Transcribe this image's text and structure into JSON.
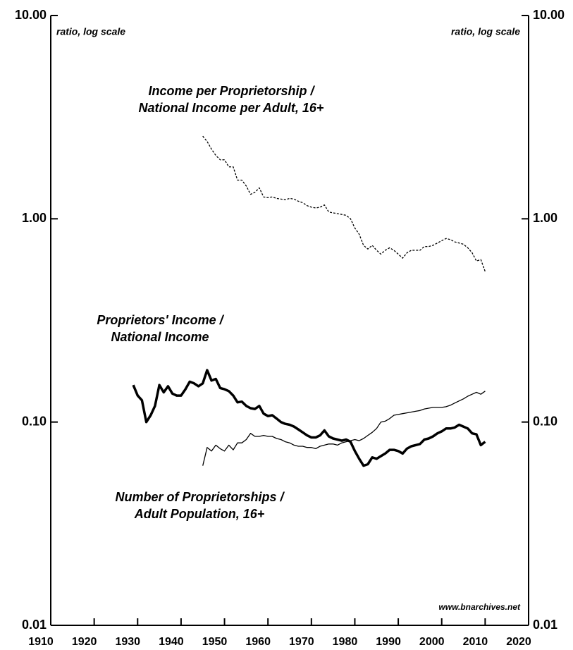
{
  "chart_data": {
    "type": "line",
    "log_scale": true,
    "axis_label_left": "ratio, log scale",
    "axis_label_right": "ratio, log scale",
    "source": "www.bnarchives.net",
    "annotations": [
      {
        "lines": [
          "Income per Proprietorship /",
          "National Income per Adult, 16+"
        ]
      },
      {
        "lines": [
          "Proprietors' Income /",
          "National Income"
        ]
      },
      {
        "lines": [
          "Number of Proprietorships /",
          "Adult Population, 16+"
        ]
      }
    ],
    "x": [
      1929,
      1930,
      1931,
      1932,
      1933,
      1934,
      1935,
      1936,
      1937,
      1938,
      1939,
      1940,
      1941,
      1942,
      1943,
      1944,
      1945,
      1946,
      1947,
      1948,
      1949,
      1950,
      1951,
      1952,
      1953,
      1954,
      1955,
      1956,
      1957,
      1958,
      1959,
      1960,
      1961,
      1962,
      1963,
      1964,
      1965,
      1966,
      1967,
      1968,
      1969,
      1970,
      1971,
      1972,
      1973,
      1974,
      1975,
      1976,
      1977,
      1978,
      1979,
      1980,
      1981,
      1982,
      1983,
      1984,
      1985,
      1986,
      1987,
      1988,
      1989,
      1990,
      1991,
      1992,
      1993,
      1994,
      1995,
      1996,
      1997,
      1998,
      1999,
      2000,
      2001,
      2002,
      2003,
      2004,
      2005,
      2006,
      2007,
      2008,
      2009,
      2010
    ],
    "series": [
      {
        "color": "#000000",
        "style": "dotted",
        "values": [
          null,
          null,
          null,
          null,
          null,
          null,
          null,
          null,
          null,
          null,
          null,
          null,
          null,
          null,
          null,
          null,
          2.55,
          2.4,
          2.2,
          2.05,
          1.95,
          1.95,
          1.8,
          1.8,
          1.55,
          1.55,
          1.45,
          1.32,
          1.35,
          1.42,
          1.28,
          1.27,
          1.28,
          1.26,
          1.25,
          1.24,
          1.26,
          1.25,
          1.22,
          1.2,
          1.16,
          1.14,
          1.13,
          1.14,
          1.17,
          1.08,
          1.07,
          1.06,
          1.05,
          1.04,
          1.0,
          0.9,
          0.84,
          0.74,
          0.71,
          0.74,
          0.7,
          0.67,
          0.7,
          0.72,
          0.7,
          0.67,
          0.64,
          0.68,
          0.7,
          0.7,
          0.7,
          0.73,
          0.73,
          0.74,
          0.76,
          0.78,
          0.8,
          0.79,
          0.77,
          0.76,
          0.75,
          0.72,
          0.68,
          0.62,
          0.63,
          0.55
        ]
      },
      {
        "color": "#000000",
        "style": "thick",
        "values": [
          0.152,
          0.135,
          0.128,
          0.1,
          0.108,
          0.12,
          0.152,
          0.14,
          0.15,
          0.138,
          0.135,
          0.135,
          0.145,
          0.158,
          0.155,
          0.15,
          0.155,
          0.18,
          0.16,
          0.163,
          0.147,
          0.145,
          0.142,
          0.135,
          0.125,
          0.126,
          0.12,
          0.117,
          0.116,
          0.12,
          0.11,
          0.107,
          0.108,
          0.104,
          0.1,
          0.098,
          0.097,
          0.095,
          0.092,
          0.089,
          0.086,
          0.084,
          0.084,
          0.086,
          0.091,
          0.085,
          0.083,
          0.082,
          0.081,
          0.082,
          0.08,
          0.072,
          0.066,
          0.061,
          0.062,
          0.067,
          0.066,
          0.068,
          0.07,
          0.073,
          0.073,
          0.072,
          0.07,
          0.074,
          0.076,
          0.077,
          0.078,
          0.082,
          0.083,
          0.085,
          0.088,
          0.09,
          0.093,
          0.093,
          0.094,
          0.097,
          0.095,
          0.093,
          0.088,
          0.087,
          0.077,
          0.08
        ]
      },
      {
        "color": "#000000",
        "style": "thin",
        "values": [
          null,
          null,
          null,
          null,
          null,
          null,
          null,
          null,
          null,
          null,
          null,
          null,
          null,
          null,
          null,
          null,
          0.061,
          0.075,
          0.072,
          0.077,
          0.074,
          0.072,
          0.077,
          0.073,
          0.079,
          0.079,
          0.082,
          0.088,
          0.085,
          0.085,
          0.086,
          0.085,
          0.085,
          0.083,
          0.082,
          0.08,
          0.079,
          0.077,
          0.076,
          0.076,
          0.075,
          0.075,
          0.074,
          0.076,
          0.077,
          0.078,
          0.078,
          0.077,
          0.079,
          0.08,
          0.081,
          0.082,
          0.081,
          0.083,
          0.086,
          0.089,
          0.093,
          0.1,
          0.101,
          0.104,
          0.108,
          0.109,
          0.11,
          0.111,
          0.112,
          0.113,
          0.114,
          0.116,
          0.117,
          0.118,
          0.118,
          0.118,
          0.119,
          0.121,
          0.124,
          0.127,
          0.13,
          0.134,
          0.137,
          0.14,
          0.137,
          0.142
        ]
      }
    ],
    "xlim": [
      1910,
      2020
    ],
    "xticks": [
      1910,
      1920,
      1930,
      1940,
      1950,
      1960,
      1970,
      1980,
      1990,
      2000,
      2010,
      2020
    ],
    "ylim": [
      0.01,
      10
    ],
    "yticks": [
      {
        "value": 0.01,
        "label": "0.01"
      },
      {
        "value": 0.1,
        "label": "0.10"
      },
      {
        "value": 1,
        "label": "1.00"
      },
      {
        "value": 10,
        "label": "10.00"
      }
    ]
  }
}
